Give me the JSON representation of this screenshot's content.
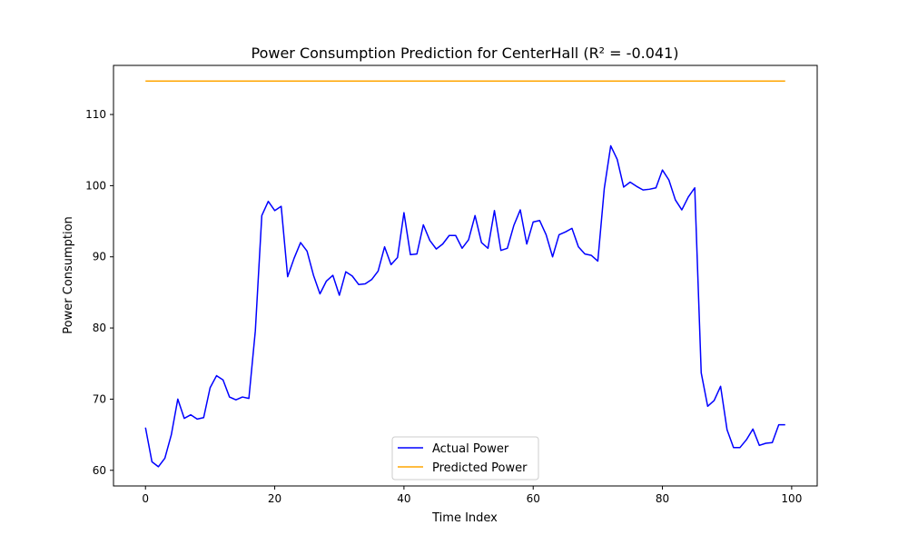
{
  "chart_data": {
    "type": "line",
    "title": "Power Consumption Prediction for CenterHall (R² = -0.041)",
    "xlabel": "Time Index",
    "ylabel": "Power Consumption",
    "xlim": [
      -4.95,
      103.95
    ],
    "ylim": [
      57.8,
      116.9
    ],
    "xticks": [
      0,
      20,
      40,
      60,
      80,
      100
    ],
    "yticks": [
      60,
      70,
      80,
      90,
      100,
      110
    ],
    "grid": false,
    "legend_position": "lower-center",
    "series": [
      {
        "name": "Actual Power",
        "color": "#0000ff",
        "x_start": 0,
        "values": [
          66.0,
          61.2,
          60.5,
          61.7,
          65.0,
          70.0,
          67.3,
          67.8,
          67.2,
          67.4,
          71.6,
          73.3,
          72.7,
          70.3,
          69.9,
          70.3,
          70.1,
          79.6,
          95.8,
          97.8,
          96.5,
          97.1,
          87.2,
          89.8,
          92.0,
          90.8,
          87.4,
          84.8,
          86.6,
          87.4,
          84.6,
          87.9,
          87.3,
          86.1,
          86.2,
          86.8,
          88.0,
          91.4,
          88.9,
          89.9,
          96.2,
          90.3,
          90.4,
          94.5,
          92.3,
          91.1,
          91.8,
          93.0,
          93.0,
          91.2,
          92.4,
          95.8,
          92.0,
          91.2,
          96.5,
          90.9,
          91.2,
          94.4,
          96.6,
          91.8,
          94.9,
          95.1,
          93.1,
          90.0,
          93.1,
          93.5,
          94.0,
          91.4,
          90.4,
          90.2,
          89.4,
          99.6,
          105.6,
          103.7,
          99.8,
          100.5,
          99.9,
          99.4,
          99.5,
          99.7,
          102.2,
          100.8,
          98.0,
          96.6,
          98.4,
          99.7,
          73.7,
          69.0,
          69.8,
          71.8,
          65.7,
          63.2,
          63.2,
          64.3,
          65.8,
          63.5,
          63.8,
          63.9,
          66.4,
          66.4
        ]
      },
      {
        "name": "Predicted Power",
        "color": "#ffa500",
        "x_start": 0,
        "values_constant": 114.7,
        "x_end": 99
      }
    ]
  }
}
